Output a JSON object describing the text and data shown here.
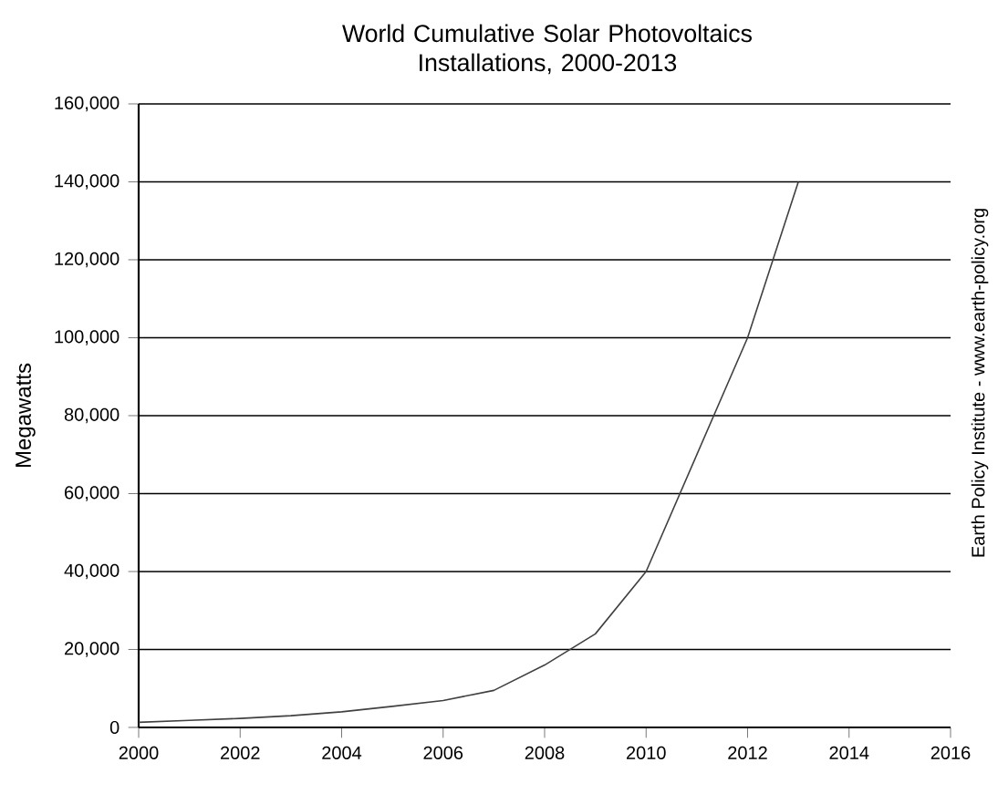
{
  "chart_data": {
    "type": "line",
    "title": "World Cumulative Solar Photovoltaics Installations, 2000-2013",
    "ylabel": "Megawatts",
    "annotations": [
      "Earth Policy Institute - www.earth-policy.org"
    ],
    "x": [
      2000,
      2001,
      2002,
      2003,
      2004,
      2005,
      2006,
      2007,
      2008,
      2009,
      2010,
      2011,
      2012,
      2013
    ],
    "series": [
      {
        "color": "#404040",
        "values": [
          1300,
          1800,
          2300,
          3000,
          4000,
          5400,
          6900,
          9500,
          16000,
          24000,
          40000,
          70000,
          100000,
          140000
        ]
      }
    ],
    "xlim": [
      2000,
      2016
    ],
    "xticks": [
      2000,
      2002,
      2004,
      2006,
      2008,
      2010,
      2012,
      2014,
      2016
    ],
    "ylim": [
      0,
      160000
    ],
    "yticks": [
      0,
      {
        "value": 20000,
        "label": "20,000"
      },
      {
        "value": 40000,
        "label": "40,000"
      },
      {
        "value": 60000,
        "label": "60,000"
      },
      {
        "value": 80000,
        "label": "80,000"
      },
      {
        "value": 100000,
        "label": "100,000"
      },
      {
        "value": 120000,
        "label": "120,000"
      },
      {
        "value": 140000,
        "label": "140,000"
      },
      {
        "value": 160000,
        "label": "160,000"
      }
    ],
    "grid": "y",
    "marker": "none",
    "line_style": "solid"
  }
}
